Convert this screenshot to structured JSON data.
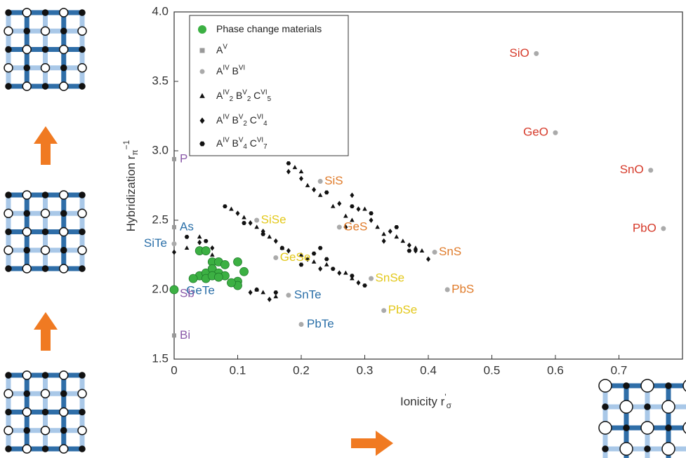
{
  "chart_data": {
    "type": "scatter",
    "x_label": [
      {
        "text": "Ionicity r"
      },
      {
        "text": "'",
        "shift": "sup"
      },
      {
        "text": "σ",
        "shift": "sub"
      }
    ],
    "y_label": [
      {
        "text": "Hybridization r"
      },
      {
        "text": "π",
        "shift": "sub"
      },
      {
        "text": "−1",
        "shift": "sup"
      }
    ],
    "xlim": [
      0,
      0.8
    ],
    "xticks": [
      0,
      0.1,
      0.2,
      0.3,
      0.4,
      0.5,
      0.6,
      0.7
    ],
    "ylim": [
      1.5,
      4.0
    ],
    "yticks": [
      {
        "value": 1.5,
        "label": "1.5"
      },
      {
        "value": 2.0,
        "label": "2.0"
      },
      {
        "value": 2.5,
        "label": "2.5"
      },
      {
        "value": 3.0,
        "label": "3.0"
      },
      {
        "value": 3.5,
        "label": "3.5"
      },
      {
        "value": 4.0,
        "label": "4.0"
      }
    ],
    "legend": "upper left",
    "series": [
      {
        "name": [
          {
            "text": "Phase change materials"
          }
        ],
        "marker": "circle",
        "color": "#3cb043",
        "x": [
          0.04,
          0.05,
          0.06,
          0.07,
          0.08,
          0.1,
          0.11,
          0.1,
          0.1,
          0.04,
          0.05,
          0.06,
          0.07,
          0.08,
          0.09,
          0.03,
          0.05,
          0.06,
          0.07,
          0.0
        ],
        "values": [
          2.28,
          2.28,
          2.2,
          2.2,
          2.18,
          2.2,
          2.13,
          2.06,
          2.03,
          2.1,
          2.12,
          2.15,
          2.12,
          2.1,
          2.05,
          2.08,
          2.08,
          2.1,
          2.09,
          2.0
        ]
      },
      {
        "name": [
          {
            "text": "A"
          },
          {
            "text": "V",
            "shift": "sup"
          }
        ],
        "marker": "square",
        "color": "#999999",
        "x": [
          0,
          0,
          0,
          0
        ],
        "values": [
          2.94,
          2.45,
          2.0,
          1.67
        ],
        "labels": [
          "P",
          "As",
          "Sb",
          "Bi"
        ],
        "label_colors": [
          "#8a5aa8",
          "#2a6fa8",
          "#8a5aa8",
          "#8a5aa8"
        ]
      },
      {
        "name": [
          {
            "text": "A"
          },
          {
            "text": "IV",
            "shift": "sup"
          },
          {
            "text": " B"
          },
          {
            "text": "VI",
            "shift": "sup"
          }
        ],
        "marker": "circle",
        "color": "#aaaaaa",
        "x": [
          0.57,
          0.6,
          0.75,
          0.77,
          0.23,
          0.26,
          0.41,
          0.43,
          0.13,
          0.16,
          0.31,
          0.33,
          0.03,
          0.18,
          0.2,
          0.0
        ],
        "values": [
          3.7,
          3.13,
          2.86,
          2.44,
          2.78,
          2.45,
          2.27,
          2.0,
          2.5,
          2.23,
          2.08,
          1.85,
          2.08,
          1.96,
          1.75,
          2.33
        ],
        "labels": [
          "SiO",
          "GeO",
          "SnO",
          "PbO",
          "SiS",
          "GeS",
          "SnS",
          "PbS",
          "SiSe",
          "GeSe",
          "SnSe",
          "PbSe",
          "GeTe",
          "SnTe",
          "PbTe",
          "SiTe"
        ],
        "label_colors": [
          "#d63a2a",
          "#d63a2a",
          "#d63a2a",
          "#d63a2a",
          "#e07b2a",
          "#e07b2a",
          "#e07b2a",
          "#e07b2a",
          "#e3c81a",
          "#e3c81a",
          "#e3c81a",
          "#e3c81a",
          "#2a6fa8",
          "#2a6fa8",
          "#2a6fa8",
          "#2a6fa8"
        ]
      },
      {
        "name": [
          {
            "text": "A"
          },
          {
            "text": "IV",
            "shift": "sup"
          },
          {
            "text": "2",
            "shift": "sub"
          },
          {
            "text": " B"
          },
          {
            "text": "V",
            "shift": "sup"
          },
          {
            "text": "2",
            "shift": "sub"
          },
          {
            "text": " C"
          },
          {
            "text": "VI",
            "shift": "sup"
          },
          {
            "text": "5",
            "shift": "sub"
          }
        ],
        "marker": "triangle",
        "color": "#111111",
        "x": [
          0.19,
          0.2,
          0.21,
          0.23,
          0.25,
          0.27,
          0.28,
          0.3,
          0.32,
          0.33,
          0.35,
          0.36,
          0.38,
          0.39,
          0.09,
          0.11,
          0.13,
          0.15,
          0.17,
          0.2,
          0.22,
          0.24,
          0.27,
          0.28,
          0.02,
          0.04,
          0.06,
          0.13,
          0.14,
          0.16
        ],
        "values": [
          2.88,
          2.85,
          2.75,
          2.68,
          2.6,
          2.53,
          2.5,
          2.58,
          2.45,
          2.4,
          2.38,
          2.35,
          2.3,
          2.28,
          2.58,
          2.52,
          2.45,
          2.38,
          2.3,
          2.25,
          2.2,
          2.18,
          2.12,
          2.08,
          2.3,
          2.38,
          2.25,
          2.0,
          1.98,
          1.95
        ]
      },
      {
        "name": [
          {
            "text": "A"
          },
          {
            "text": "IV",
            "shift": "sup"
          },
          {
            "text": " B"
          },
          {
            "text": "V",
            "shift": "sup"
          },
          {
            "text": "2",
            "shift": "sub"
          },
          {
            "text": " C"
          },
          {
            "text": "VI",
            "shift": "sup"
          },
          {
            "text": "4",
            "shift": "sub"
          }
        ],
        "marker": "diamond",
        "color": "#111111",
        "x": [
          0.18,
          0.2,
          0.22,
          0.26,
          0.29,
          0.28,
          0.31,
          0.34,
          0.37,
          0.4,
          0.38,
          0.1,
          0.12,
          0.14,
          0.16,
          0.18,
          0.21,
          0.23,
          0.26,
          0.29,
          0.04,
          0.06,
          0.12,
          0.15,
          0.0,
          0.27,
          0.33
        ],
        "values": [
          2.85,
          2.8,
          2.72,
          2.62,
          2.58,
          2.68,
          2.5,
          2.42,
          2.32,
          2.22,
          2.28,
          2.55,
          2.48,
          2.42,
          2.35,
          2.28,
          2.22,
          2.15,
          2.12,
          2.05,
          2.34,
          2.3,
          1.98,
          1.93,
          2.27,
          2.45,
          2.35
        ]
      },
      {
        "name": [
          {
            "text": "A"
          },
          {
            "text": "IV",
            "shift": "sup"
          },
          {
            "text": " B"
          },
          {
            "text": "V",
            "shift": "sup"
          },
          {
            "text": "4",
            "shift": "sub"
          },
          {
            "text": " C"
          },
          {
            "text": "VI",
            "shift": "sup"
          },
          {
            "text": "7",
            "shift": "sub"
          }
        ],
        "marker": "hexagon",
        "color": "#111111",
        "x": [
          0.18,
          0.24,
          0.28,
          0.31,
          0.35,
          0.08,
          0.11,
          0.14,
          0.17,
          0.2,
          0.23,
          0.24,
          0.25,
          0.28,
          0.3,
          0.37,
          0.02,
          0.05,
          0.13,
          0.16,
          0.22
        ],
        "values": [
          2.91,
          2.7,
          2.6,
          2.55,
          2.45,
          2.6,
          2.48,
          2.4,
          2.3,
          2.18,
          2.3,
          2.22,
          2.15,
          2.1,
          2.03,
          2.28,
          2.38,
          2.35,
          2.0,
          1.98,
          2.26
        ]
      }
    ]
  }
}
